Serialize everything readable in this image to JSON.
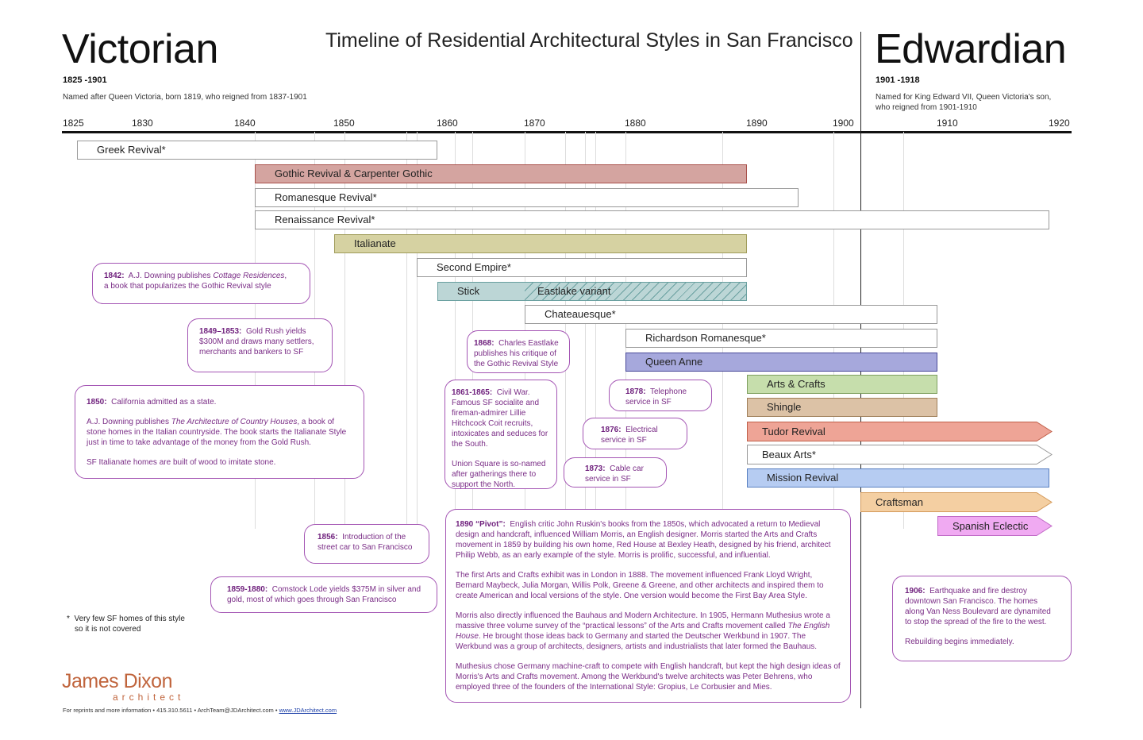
{
  "title": "Timeline of Residential Architectural Styles in San Francisco",
  "eras": {
    "victorian": {
      "name": "Victorian",
      "years": "1825 -1901",
      "desc": "Named after Queen Victoria, born 1819, who reigned from 1837-1901"
    },
    "edwardian": {
      "name": "Edwardian",
      "years": "1901 -1918",
      "desc_line1": "Named for King Edward VII, Queen Victoria's son,",
      "desc_line2": "who reigned from 1901-1910"
    }
  },
  "chart_data": {
    "type": "bar",
    "orientation": "horizontal-timeline",
    "xlim": [
      1825,
      1920
    ],
    "x_ticks": [
      1825,
      1830,
      1840,
      1850,
      1860,
      1870,
      1880,
      1890,
      1900,
      1910,
      1920
    ],
    "era_divider": 1901,
    "series": [
      {
        "name": "Greek Revival*",
        "start": 1826,
        "end": 1860,
        "color": "#ffffff"
      },
      {
        "name": "Gothic Revival & Carpenter Gothic",
        "start": 1842,
        "end": 1890,
        "color": "#d4a4a0"
      },
      {
        "name": "Romanesque Revival*",
        "start": 1842,
        "end": 1896,
        "color": "#ffffff"
      },
      {
        "name": "Renaissance Revival*",
        "start": 1842,
        "end": 1920,
        "color": "#ffffff"
      },
      {
        "name": "Italianate",
        "start": 1850,
        "end": 1890,
        "color": "#d6d2a2"
      },
      {
        "name": "Second Empire*",
        "start": 1858,
        "end": 1890,
        "color": "#ffffff"
      },
      {
        "name": "Stick",
        "start": 1860,
        "end": 1890,
        "color": "#bcd6d6"
      },
      {
        "name": "Eastlake variant",
        "start": 1870,
        "end": 1890,
        "color": "#bcd6d6",
        "hatched": true
      },
      {
        "name": "Chateauesque*",
        "start": 1870,
        "end": 1910,
        "color": "#ffffff"
      },
      {
        "name": "Richardson Romanesque*",
        "start": 1880,
        "end": 1910,
        "color": "#ffffff"
      },
      {
        "name": "Queen Anne",
        "start": 1880,
        "end": 1910,
        "color": "#a6a8dc"
      },
      {
        "name": "Arts & Crafts",
        "start": 1890,
        "end": 1910,
        "color": "#c6deac"
      },
      {
        "name": "Shingle",
        "start": 1890,
        "end": 1910,
        "color": "#dcc2a6"
      },
      {
        "name": "Tudor Revival",
        "start": 1890,
        "end": 1920,
        "color": "#eea496",
        "arrow": true
      },
      {
        "name": "Beaux Arts*",
        "start": 1890,
        "end": 1920,
        "color": "#ffffff",
        "arrow": true
      },
      {
        "name": "Mission Revival",
        "start": 1890,
        "end": 1920,
        "color": "#b6ccf2"
      },
      {
        "name": "Craftsman",
        "start": 1901,
        "end": 1920,
        "color": "#f4cfa2",
        "arrow": true
      },
      {
        "name": "Spanish Eclectic",
        "start": 1910,
        "end": 1920,
        "color": "#f0aaf2",
        "arrow": true
      }
    ]
  },
  "notes": {
    "n1842": {
      "year": "1842:",
      "text_a": "A.J. Downing publishes ",
      "italic": "Cottage Residences",
      "text_b": ",",
      "line2": "a book that popularizes the Gothic Revival style"
    },
    "n1849": {
      "year": "1849–1853:",
      "text_a": "Gold Rush yields",
      "line2": "$300M and draws many settlers,",
      "line3": "merchants and bankers to SF"
    },
    "n1850": {
      "year": "1850:",
      "text_a": "California admitted as a state.",
      "p2a": "A.J. Downing publishes ",
      "p2i": "The Architecture of Country Houses",
      "p2b": ", a book of stone homes in the Italian countryside. The book starts the Italianate Style just in time to take advantage of the money from the Gold Rush.",
      "p3": "SF Italianate homes are built of wood to imitate stone."
    },
    "n1856": {
      "year": "1856:",
      "text_a": "Introduction of the",
      "line2": "street car to San Francisco"
    },
    "n1859": {
      "year": "1859-1880:",
      "text_a": "Comstock Lode yields $375M in silver and",
      "line2": "gold, most of which goes through San Francisco"
    },
    "n1868": {
      "year": "1868:",
      "text_a": "Charles Eastlake",
      "line2": "publishes his critique of",
      "line3": "the Gothic Revival Style"
    },
    "n1861": {
      "year": "1861-1865:",
      "text_a": "Civil War.",
      "p1b": "Famous SF socialite and fireman-admirer Lillie Hitchcock Coit recruits, intoxicates and seduces for the South.",
      "p2": "Union Square is so-named after gatherings there to support the North."
    },
    "n1878": {
      "year": "1878:",
      "text_a": "Telephone",
      "line2": "service in SF"
    },
    "n1876": {
      "year": "1876:",
      "text_a": "Electrical",
      "line2": "service in SF"
    },
    "n1873": {
      "year": "1873:",
      "text_a": "Cable car",
      "line2": "service in SF"
    },
    "n1890": {
      "year": "1890 “Pivot”:",
      "p1": "English critic John Ruskin's books from the 1850s, which advocated a return to Medieval design and handcraft, influenced William Morris, an English designer. Morris started the Arts and Crafts movement in 1859 by building his own home, Red House at Bexley Heath, designed by his friend, architect Philip Webb, as an early example of the style. Morris is prolific, successful, and influential.",
      "p2": "The first Arts and Crafts exhibit was in London in 1888. The movement influenced Frank Lloyd Wright, Bernard Maybeck, Julia Morgan, Willis Polk, Greene & Greene, and other architects and inspired them to create American and local versions of the style. One version would become the First Bay Area Style.",
      "p3a": "Morris also directly influenced the Bauhaus and Modern Architecture. In 1905, Hermann Muthesius wrote a massive three volume survey of the “practical lessons” of the Arts and Crafts movement called ",
      "p3i": "The English House",
      "p3b": ". He brought those ideas back to Germany and started the Deutscher Werkbund in 1907. The Werkbund was a group of architects, designers, artists and industrialists that later formed the Bauhaus.",
      "p4": "Muthesius chose Germany machine-craft to compete with English handcraft, but kept the high design ideas of Morris's Arts and Crafts movement. Among the Werkbund's twelve architects was Peter Behrens, who employed three of the founders of the International Style: Gropius, Le Corbusier and Mies."
    },
    "n1906": {
      "year": "1906:",
      "text_a": "Earthquake and fire destroy downtown San Francisco. The homes along Van Ness Boulevard are dynamited to stop the spread of the fire to the west.",
      "p2": "Rebuilding begins immediately."
    }
  },
  "footnote": {
    "star": "*",
    "line1": "Very few SF homes of this style",
    "line2": "so it is not covered"
  },
  "branding": {
    "name": "James Dixon",
    "sub": "architect",
    "contact": "For reprints and more information • 415.310.5611 • ArchTeam@JDArchitect.com • ",
    "link": "www.JDArchitect.com"
  }
}
